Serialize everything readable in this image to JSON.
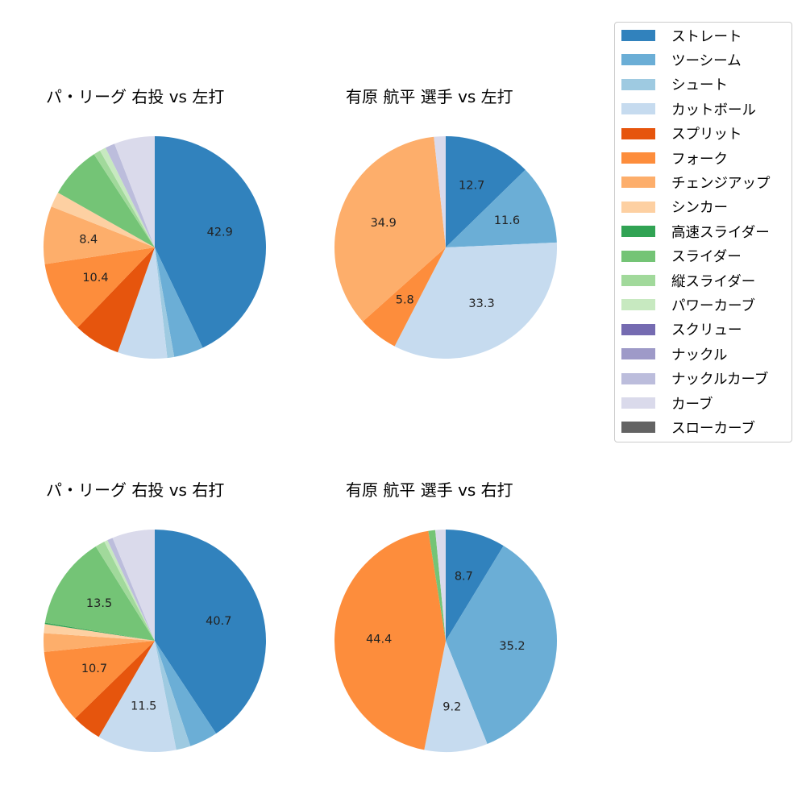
{
  "colors": {
    "ストレート": "#3182bd",
    "ツーシーム": "#6baed6",
    "シュート": "#9ecae1",
    "カットボール": "#c6dbef",
    "スプリット": "#e6550d",
    "フォーク": "#fd8d3c",
    "チェンジアップ": "#fdae6b",
    "シンカー": "#fdd0a2",
    "高速スライダー": "#31a354",
    "スライダー": "#74c476",
    "縦スライダー": "#a1d99b",
    "パワーカーブ": "#c7e9c0",
    "スクリュー": "#756bb1",
    "ナックル": "#9e9ac8",
    "ナックルカーブ": "#bcbddc",
    "カーブ": "#dadaeb",
    "スローカーブ": "#636363"
  },
  "legend": {
    "items": [
      {
        "label": "ストレート",
        "color": "#3182bd"
      },
      {
        "label": "ツーシーム",
        "color": "#6baed6"
      },
      {
        "label": "シュート",
        "color": "#9ecae1"
      },
      {
        "label": "カットボール",
        "color": "#c6dbef"
      },
      {
        "label": "スプリット",
        "color": "#e6550d"
      },
      {
        "label": "フォーク",
        "color": "#fd8d3c"
      },
      {
        "label": "チェンジアップ",
        "color": "#fdae6b"
      },
      {
        "label": "シンカー",
        "color": "#fdd0a2"
      },
      {
        "label": "高速スライダー",
        "color": "#31a354"
      },
      {
        "label": "スライダー",
        "color": "#74c476"
      },
      {
        "label": "縦スライダー",
        "color": "#a1d99b"
      },
      {
        "label": "パワーカーブ",
        "color": "#c7e9c0"
      },
      {
        "label": "スクリュー",
        "color": "#756bb1"
      },
      {
        "label": "ナックル",
        "color": "#9e9ac8"
      },
      {
        "label": "ナックルカーブ",
        "color": "#bcbddc"
      },
      {
        "label": "カーブ",
        "color": "#dadaeb"
      },
      {
        "label": "スローカーブ",
        "color": "#636363"
      }
    ]
  },
  "panels": [
    {
      "title": "パ・リーグ 右投 vs 左打"
    },
    {
      "title": "有原 航平 選手 vs 左打"
    },
    {
      "title": "パ・リーグ 右投 vs 右打"
    },
    {
      "title": "有原 航平 選手 vs 右打"
    }
  ],
  "chart_data": [
    {
      "type": "pie",
      "title": "パ・リーグ 右投 vs 左打",
      "labels_shown_threshold": 8,
      "slices": [
        {
          "label": "ストレート",
          "value": 42.9,
          "shown": "42.9"
        },
        {
          "label": "ツーシーム",
          "value": 4.3
        },
        {
          "label": "シュート",
          "value": 1.0
        },
        {
          "label": "カットボール",
          "value": 7.2
        },
        {
          "label": "スプリット",
          "value": 6.8
        },
        {
          "label": "フォーク",
          "value": 10.4,
          "shown": "10.4"
        },
        {
          "label": "チェンジアップ",
          "value": 8.4,
          "shown": "8.4"
        },
        {
          "label": "シンカー",
          "value": 2.2
        },
        {
          "label": "スライダー",
          "value": 7.6
        },
        {
          "label": "縦スライダー",
          "value": 1.0
        },
        {
          "label": "パワーカーブ",
          "value": 0.9
        },
        {
          "label": "ナックルカーブ",
          "value": 1.4
        },
        {
          "label": "カーブ",
          "value": 5.9
        }
      ]
    },
    {
      "type": "pie",
      "title": "有原 航平 選手 vs 左打",
      "slices": [
        {
          "label": "ストレート",
          "value": 12.7,
          "shown": "12.7"
        },
        {
          "label": "ツーシーム",
          "value": 11.6,
          "shown": "11.6"
        },
        {
          "label": "カットボール",
          "value": 33.3,
          "shown": "33.3"
        },
        {
          "label": "フォーク",
          "value": 5.8,
          "shown": "5.8"
        },
        {
          "label": "チェンジアップ",
          "value": 34.9,
          "shown": "34.9"
        },
        {
          "label": "カーブ",
          "value": 1.7
        }
      ]
    },
    {
      "type": "pie",
      "title": "パ・リーグ 右投 vs 右打",
      "slices": [
        {
          "label": "ストレート",
          "value": 40.7,
          "shown": "40.7"
        },
        {
          "label": "ツーシーム",
          "value": 4.1
        },
        {
          "label": "シュート",
          "value": 2.1
        },
        {
          "label": "カットボール",
          "value": 11.5,
          "shown": "11.5"
        },
        {
          "label": "スプリット",
          "value": 4.3
        },
        {
          "label": "フォーク",
          "value": 10.7,
          "shown": "10.7"
        },
        {
          "label": "チェンジアップ",
          "value": 2.7
        },
        {
          "label": "シンカー",
          "value": 1.3
        },
        {
          "label": "高速スライダー",
          "value": 0.2
        },
        {
          "label": "スライダー",
          "value": 13.5,
          "shown": "13.5"
        },
        {
          "label": "縦スライダー",
          "value": 1.4
        },
        {
          "label": "パワーカーブ",
          "value": 0.5
        },
        {
          "label": "ナックルカーブ",
          "value": 0.8
        },
        {
          "label": "カーブ",
          "value": 6.2
        }
      ]
    },
    {
      "type": "pie",
      "title": "有原 航平 選手 vs 右打",
      "slices": [
        {
          "label": "ストレート",
          "value": 8.7,
          "shown": "8.7"
        },
        {
          "label": "ツーシーム",
          "value": 35.2,
          "shown": "35.2"
        },
        {
          "label": "カットボール",
          "value": 9.2,
          "shown": "9.2"
        },
        {
          "label": "フォーク",
          "value": 44.4,
          "shown": "44.4"
        },
        {
          "label": "スライダー",
          "value": 1.0
        },
        {
          "label": "カーブ",
          "value": 1.5
        }
      ]
    }
  ]
}
